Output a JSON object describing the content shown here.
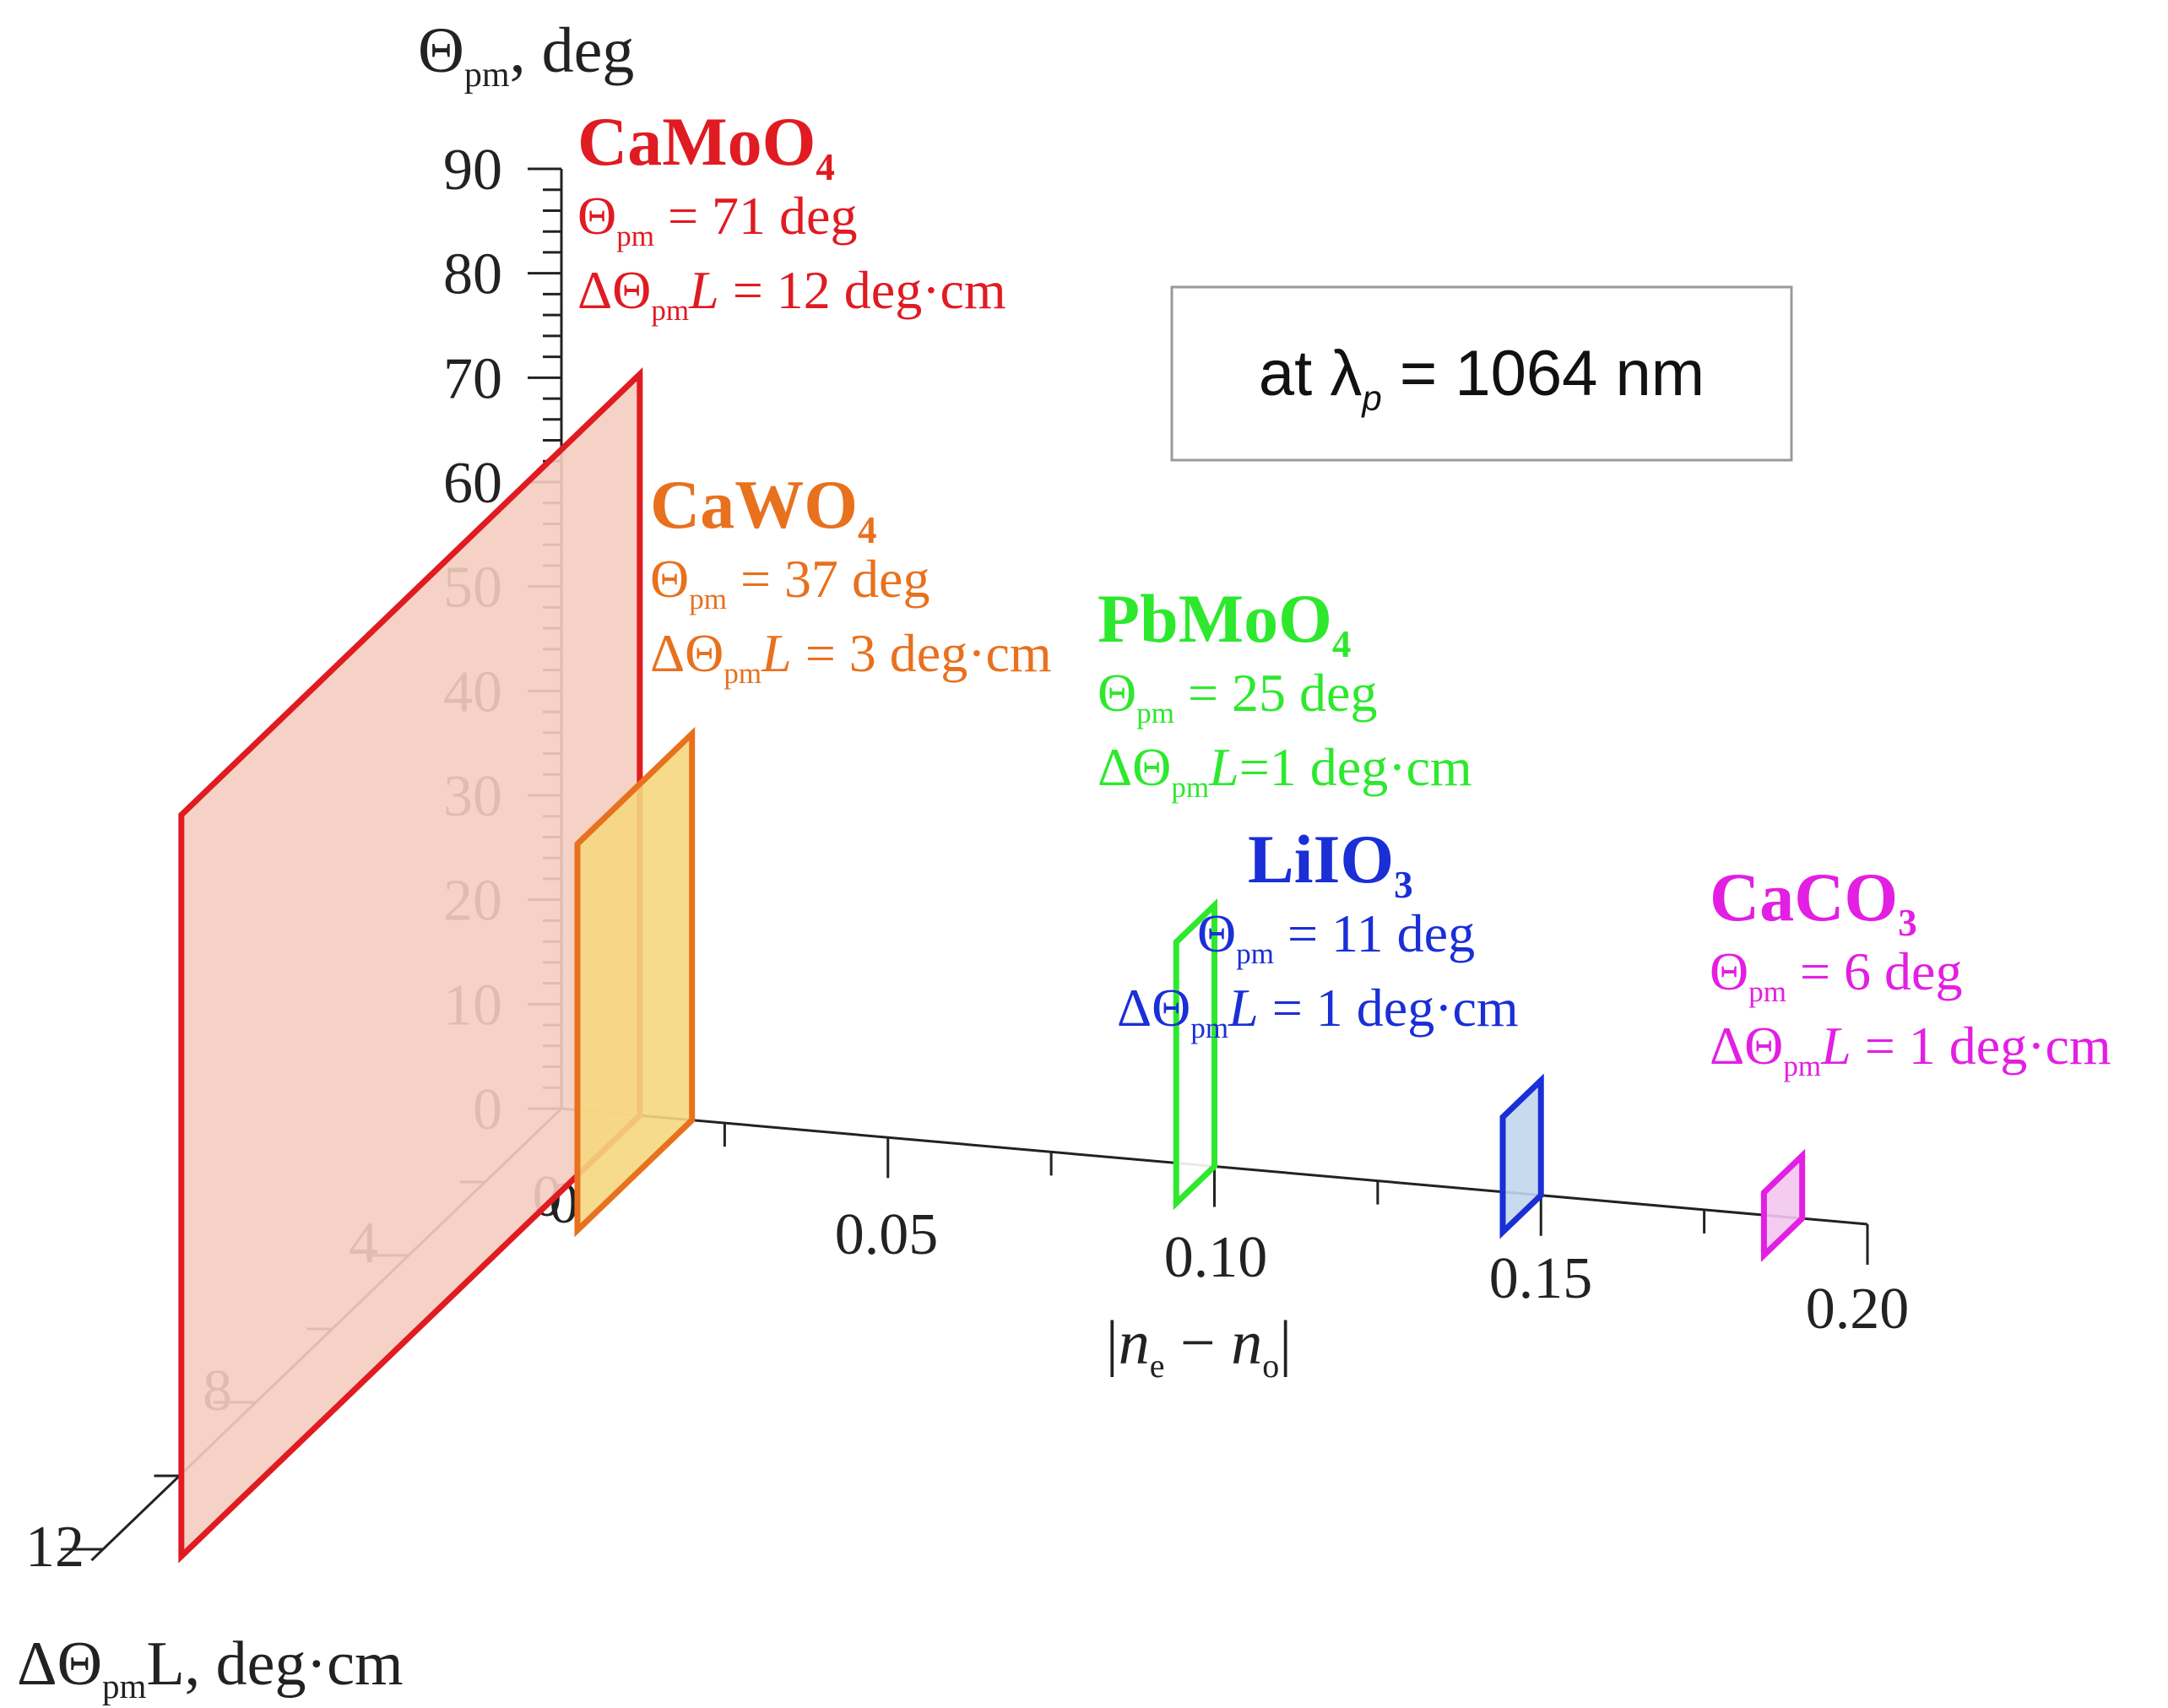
{
  "chart_data": {
    "type": "3d-rectangles",
    "title": "",
    "annotation": {
      "prefix": "at ",
      "symbol": "λ",
      "sub": "p",
      "value": " = 1064 nm"
    },
    "axes": {
      "z": {
        "label_symbol": "Θ",
        "label_sub": "pm",
        "label_suffix": ", deg",
        "range": [
          0,
          90
        ],
        "ticks": [
          "0",
          "10",
          "20",
          "30",
          "40",
          "50",
          "60",
          "70",
          "80",
          "90"
        ]
      },
      "x": {
        "label": "|ne − no|",
        "range": [
          0,
          0.2
        ],
        "ticks": [
          "0",
          "0.05",
          "0.10",
          "0.15",
          "0.20"
        ]
      },
      "y": {
        "label_prefix": "ΔΘ",
        "label_sub": "pm",
        "label_suffix": "L, deg·cm",
        "range": [
          0,
          12
        ],
        "ticks": [
          "4",
          "8",
          "12"
        ]
      }
    },
    "series": [
      {
        "name": "CaMoO",
        "name_sub": "4",
        "theta_pm": 71,
        "dtheta_L": 12,
        "biref": 0.012,
        "color": "#e01b22",
        "fill": "#f4cdbf",
        "line1": "Θ",
        "line1_sub": "pm",
        "line1_rest": " = 71 deg",
        "line2": "ΔΘ",
        "line2_sub": "pm",
        "line2_rest": "L = 12 deg·cm"
      },
      {
        "name": "CaWO",
        "name_sub": "4",
        "theta_pm": 37,
        "dtheta_L": 3,
        "biref": 0.02,
        "color": "#e8711e",
        "fill": "#f6d77f",
        "line1": "Θ",
        "line1_sub": "pm",
        "line1_rest": " = 37 deg",
        "line2": "ΔΘ",
        "line2_sub": "pm",
        "line2_rest": "L = 3 deg·cm"
      },
      {
        "name": "PbMoO",
        "name_sub": "4",
        "theta_pm": 25,
        "dtheta_L": 1,
        "biref": 0.1,
        "color": "#2ee82e",
        "fill": "#ffffff",
        "line1": "Θ",
        "line1_sub": "pm",
        "line1_rest": " = 25 deg",
        "line2": "ΔΘ",
        "line2_sub": "pm",
        "line2_rest": "L=1 deg·cm"
      },
      {
        "name": "LiIO",
        "name_sub": "3",
        "theta_pm": 11,
        "dtheta_L": 1,
        "biref": 0.15,
        "color": "#1a2fd6",
        "fill": "#c2d6ec",
        "line1": "Θ",
        "line1_sub": "pm",
        "line1_rest": " = 11 deg",
        "line2": "ΔΘ",
        "line2_sub": "pm",
        "line2_rest": "L =  1 deg·cm"
      },
      {
        "name": "CaCO",
        "name_sub": "3",
        "theta_pm": 6,
        "dtheta_L": 1,
        "biref": 0.19,
        "color": "#e21fe2",
        "fill": "#f2c6ee",
        "line1": "Θ",
        "line1_sub": "pm",
        "line1_rest": " = 6 deg",
        "line2": "ΔΘ",
        "line2_sub": "pm",
        "line2_rest": "L = 1 deg·cm"
      }
    ]
  }
}
